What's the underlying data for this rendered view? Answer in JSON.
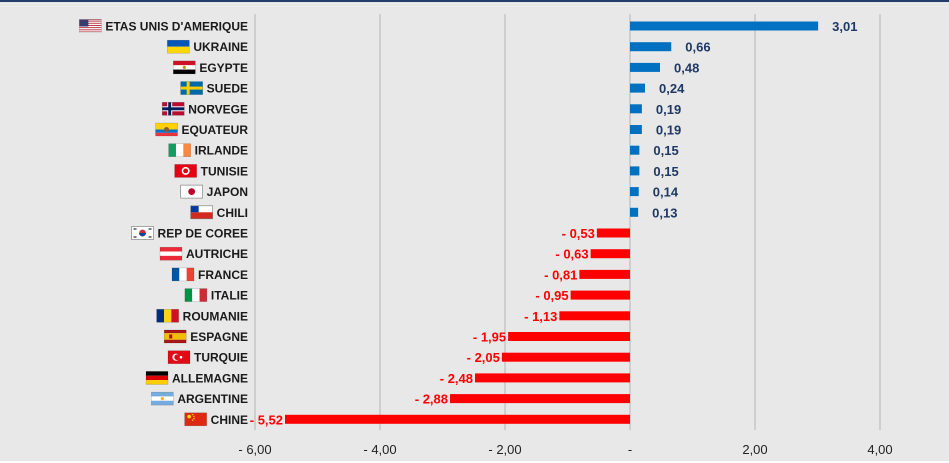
{
  "chart_data": {
    "type": "bar",
    "orientation": "horizontal",
    "categories": [
      "ETAS UNIS D'AMERIQUE",
      "UKRAINE",
      "EGYPTE",
      "SUEDE",
      "NORVEGE",
      "EQUATEUR",
      "IRLANDE",
      "TUNISIE",
      "JAPON",
      "CHILI",
      "REP DE COREE",
      "AUTRICHE",
      "FRANCE",
      "ITALIE",
      "ROUMANIE",
      "ESPAGNE",
      "TURQUIE",
      "ALLEMAGNE",
      "ARGENTINE",
      "CHINE"
    ],
    "values": [
      3.01,
      0.66,
      0.48,
      0.24,
      0.19,
      0.19,
      0.15,
      0.15,
      0.14,
      0.13,
      -0.53,
      -0.63,
      -0.81,
      -0.95,
      -1.13,
      -1.95,
      -2.05,
      -2.48,
      -2.88,
      -5.52
    ],
    "value_labels": [
      "3,01",
      "0,66",
      "0,48",
      "0,24",
      "0,19",
      "0,19",
      "0,15",
      "0,15",
      "0,14",
      "0,13",
      "- 0,53",
      "- 0,63",
      "- 0,81",
      "- 0,95",
      "- 1,13",
      "- 1,95",
      "- 2,05",
      "- 2,48",
      "- 2,88",
      "- 5,52"
    ],
    "flags": [
      "flag-us-icon",
      "flag-ukraine-icon",
      "flag-egypt-icon",
      "flag-sweden-icon",
      "flag-norway-icon",
      "flag-ecuador-icon",
      "flag-ireland-icon",
      "flag-tunisia-icon",
      "flag-japan-icon",
      "flag-chile-icon",
      "flag-south-korea-icon",
      "flag-austria-icon",
      "flag-france-icon",
      "flag-italy-icon",
      "flag-romania-icon",
      "flag-spain-icon",
      "flag-turkey-icon",
      "flag-germany-icon",
      "flag-argentina-icon",
      "flag-china-icon"
    ],
    "x_ticks": [
      -6,
      -4,
      -2,
      0,
      2,
      4
    ],
    "x_tick_labels": [
      "- 6,00",
      "- 4,00",
      "- 2,00",
      "-",
      "2,00",
      "4,00"
    ],
    "xlim": [
      -6,
      4
    ],
    "grid": "vertical",
    "colors": {
      "positive": "#0070c0",
      "negative": "#ff0000",
      "positive_label": "#1f3864",
      "negative_label": "#ff0000",
      "background": "#e8e8e8",
      "frame": "#233d6b"
    },
    "title": "",
    "xlabel": "",
    "ylabel": ""
  }
}
